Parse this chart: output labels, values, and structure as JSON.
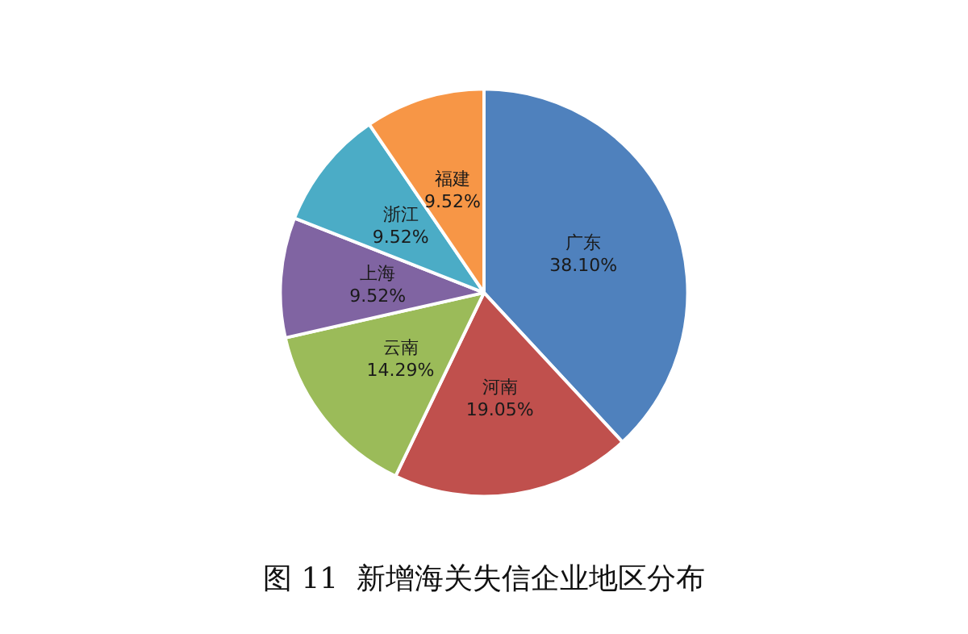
{
  "chart_data": {
    "type": "pie",
    "title": "图 11  新增海关失信企业地区分布",
    "categories": [
      "广东",
      "河南",
      "云南",
      "上海",
      "浙江",
      "福建"
    ],
    "values": [
      38.1,
      19.05,
      14.29,
      9.52,
      9.52,
      9.52
    ],
    "value_labels": [
      "38.10%",
      "19.05%",
      "14.29%",
      "9.52%",
      "9.52%",
      "9.52%"
    ],
    "colors": [
      "#4f81bd",
      "#c0504d",
      "#9bbb59",
      "#8064a2",
      "#4bacc6",
      "#f79646"
    ],
    "legend": false
  }
}
